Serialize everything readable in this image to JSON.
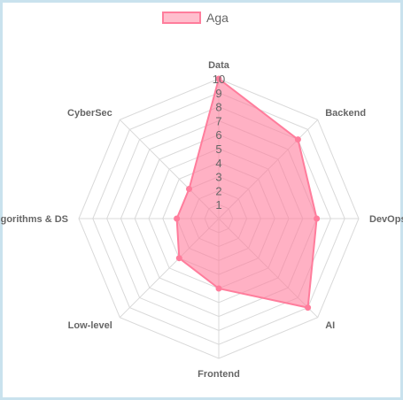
{
  "chart_data": {
    "type": "radar",
    "categories": [
      "Data",
      "Backend",
      "DevOps",
      "AI",
      "Frontend",
      "Low-level",
      "Algorithms & DS",
      "CyberSec"
    ],
    "series": [
      {
        "name": "Aga",
        "values": [
          10,
          8,
          7,
          9,
          5,
          4,
          3,
          3
        ],
        "color": "#ff7d9c"
      }
    ],
    "r_range": [
      0,
      10
    ],
    "r_ticks": [
      "1",
      "2",
      "3",
      "4",
      "5",
      "6",
      "7",
      "8",
      "9",
      "10"
    ],
    "legend_position": "top",
    "grid": true
  }
}
